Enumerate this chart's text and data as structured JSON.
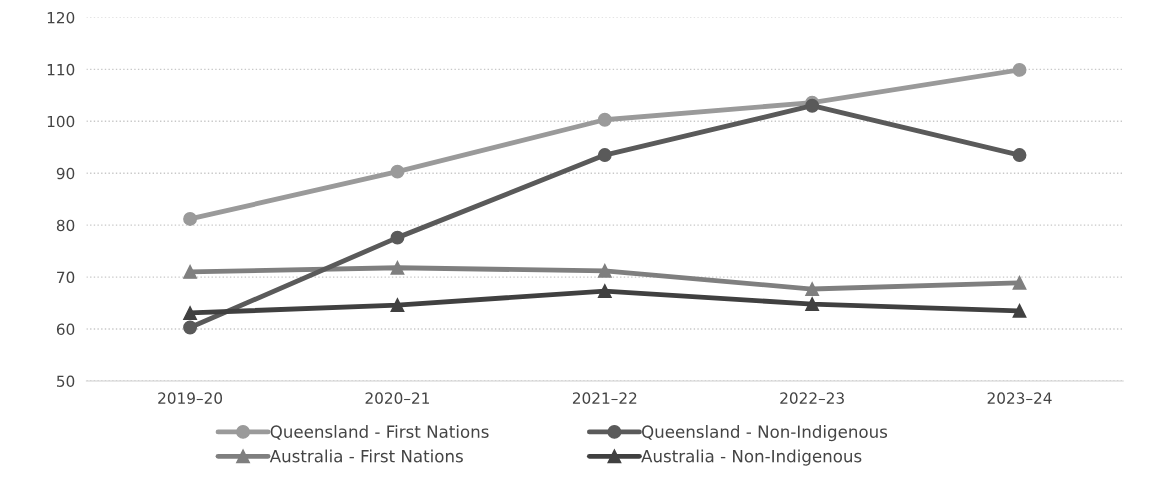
{
  "chart_data": {
    "type": "line",
    "categories": [
      "2019–20",
      "2020–21",
      "2021–22",
      "2022–23",
      "2023–24"
    ],
    "series": [
      {
        "name": "Queensland - First Nations",
        "color": "#9a9a9a",
        "marker": "circle",
        "values": [
          81.2,
          90.3,
          100.3,
          103.6,
          109.9
        ]
      },
      {
        "name": "Australia - First Nations",
        "color": "#7f7f7f",
        "marker": "triangle",
        "values": [
          71.0,
          71.8,
          71.2,
          67.7,
          68.9
        ]
      },
      {
        "name": "Queensland - Non-Indigenous",
        "color": "#5a5a5a",
        "marker": "circle",
        "values": [
          60.3,
          77.6,
          93.5,
          103.0,
          93.5
        ]
      },
      {
        "name": "Australia - Non-Indigenous",
        "color": "#404040",
        "marker": "triangle",
        "values": [
          63.1,
          64.6,
          67.3,
          64.8,
          63.5
        ]
      }
    ],
    "ylim": [
      50,
      120
    ],
    "yticks": [
      50,
      60,
      70,
      80,
      90,
      100,
      110,
      120
    ],
    "grid": "y",
    "legend": "bottom",
    "line_style": "solid"
  }
}
